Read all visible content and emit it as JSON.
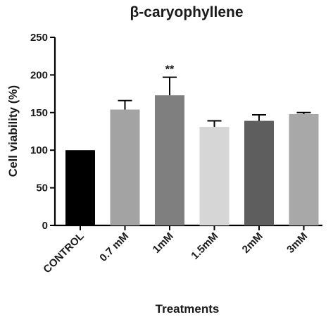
{
  "chart_data": {
    "type": "bar",
    "title": "β-caryophyllene",
    "xlabel": "Treatments",
    "ylabel": "Cell viability (%)",
    "ylim": [
      0,
      250
    ],
    "yticks": [
      0,
      50,
      100,
      150,
      200,
      250
    ],
    "grid": false,
    "categories": [
      "CONTROL",
      "0.7 mM",
      "1mM",
      "1.5mM",
      "2mM",
      "3mM"
    ],
    "values": [
      100,
      154,
      173,
      131,
      139,
      148
    ],
    "error": [
      0,
      12,
      24,
      8,
      8,
      2
    ],
    "bar_colors": [
      "#000000",
      "#a3a3a3",
      "#7f7f7f",
      "#d6d6d6",
      "#5e5e5e",
      "#a8a8a8"
    ],
    "annotations": [
      {
        "category": "1mM",
        "text": "**"
      }
    ]
  }
}
